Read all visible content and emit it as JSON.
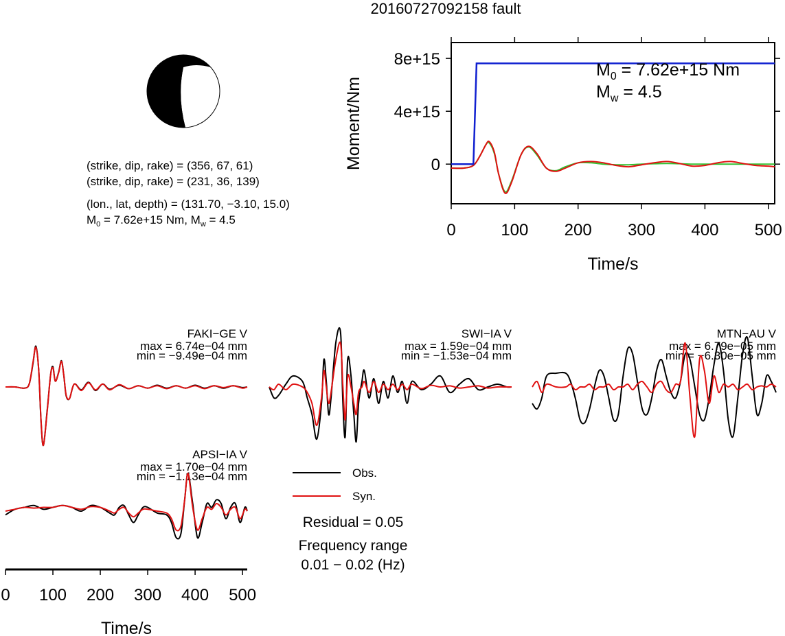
{
  "title": "20160727092158 fault",
  "mechanism": {
    "plane1": "(strike, dip, rake) = (356, 67, 61)",
    "plane2": "(strike, dip, rake) = (231, 36, 139)",
    "location": "(lon., lat, depth) = (131.70, −3.10, 15.0)",
    "m0_label": "M",
    "m0_sub": "0",
    "m0_rest": " = 7.62e+15 Nm, M",
    "mw_sub": "w",
    "mw_rest": " = 4.5"
  },
  "moment_panel": {
    "m0_label": "M",
    "m0_sub": "0",
    "m0_value": " = 7.62e+15 Nm",
    "mw_label": "M",
    "mw_sub": "w",
    "mw_value": " = 4.5"
  },
  "legend": {
    "obs": "Obs.",
    "syn": "Syn.",
    "residual": "Residual = 0.05",
    "freq_title": "Frequency range",
    "freq_value": "0.01 − 0.02 (Hz)"
  },
  "colors": {
    "observed": "#000000",
    "synthetic": "#e01010",
    "moment": "#1020d0",
    "moment_rate": "#30c030"
  },
  "chart_data": [
    {
      "type": "line",
      "title": "",
      "xlabel": "Time/s",
      "ylabel": "Moment/Nm",
      "xlim": [
        0,
        510
      ],
      "ylim": [
        -3000000000000000.0,
        9200000000000000.0
      ],
      "xticks": [
        "0",
        "100",
        "200",
        "300",
        "400",
        "500"
      ],
      "xtick_values": [
        0,
        100,
        200,
        300,
        400,
        500
      ],
      "yticks": [
        "0",
        "4e+15",
        "8e+15"
      ],
      "ytick_values": [
        0,
        4000000000000000.0,
        8000000000000000.0
      ],
      "grid": false,
      "series": [
        {
          "key": "moment",
          "x": [
            0,
            35,
            40,
            510
          ],
          "y": [
            0,
            0,
            7620000000000000.0,
            7620000000000000.0
          ]
        },
        {
          "key": "rate_green",
          "x": [
            0,
            20,
            35,
            45,
            55,
            60,
            68,
            75,
            85,
            95,
            110,
            122,
            135,
            150,
            165,
            180,
            200,
            220,
            240,
            260,
            280,
            300,
            320,
            340,
            360,
            380,
            400,
            420,
            440,
            460,
            480,
            500,
            510
          ],
          "y": [
            -300000000000000.0,
            -300000000000000.0,
            -100000000000000.0,
            600000000000000.0,
            1500000000000000.0,
            1600000000000000.0,
            800000000000000.0,
            -800000000000000.0,
            -2100000000000000.0,
            -1300000000000000.0,
            700000000000000.0,
            1300000000000000.0,
            700000000000000.0,
            -300000000000000.0,
            -500000000000000.0,
            -200000000000000.0,
            100000000000000.0,
            100000000000000.0,
            0.0,
            -50000000000000.0,
            -50000000000000.0,
            0.0,
            30000000000000.0,
            50000000000000.0,
            30000000000000.0,
            0.0,
            0.0,
            0.0,
            0.0,
            0.0,
            0.0,
            0.0,
            0.0
          ]
        },
        {
          "key": "rate_red",
          "x": [
            0,
            20,
            35,
            45,
            55,
            60,
            68,
            75,
            85,
            95,
            110,
            122,
            135,
            150,
            165,
            180,
            200,
            220,
            240,
            260,
            280,
            300,
            320,
            340,
            360,
            380,
            400,
            420,
            440,
            460,
            480,
            500,
            510
          ],
          "y": [
            -300000000000000.0,
            -300000000000000.0,
            -100000000000000.0,
            600000000000000.0,
            1500000000000000.0,
            1700000000000000.0,
            900000000000000.0,
            -800000000000000.0,
            -2200000000000000.0,
            -1400000000000000.0,
            700000000000000.0,
            1350000000000000.0,
            800000000000000.0,
            -300000000000000.0,
            -550000000000000.0,
            -300000000000000.0,
            100000000000000.0,
            200000000000000.0,
            100000000000000.0,
            -100000000000000.0,
            -200000000000000.0,
            -50000000000000.0,
            100000000000000.0,
            200000000000000.0,
            50000000000000.0,
            -150000000000000.0,
            -100000000000000.0,
            100000000000000.0,
            200000000000000.0,
            50000000000000.0,
            -100000000000000.0,
            -150000000000000.0,
            -200000000000000.0
          ]
        }
      ]
    },
    {
      "type": "line",
      "title": "FAKI−GE V",
      "max_label": "max = 6.74e−04 mm",
      "min_label": "min = −9.49e−04 mm",
      "xlim": [
        0,
        510
      ],
      "ylim": [
        -1,
        1
      ],
      "series": [
        {
          "name": "Obs.",
          "x": [
            0,
            20,
            40,
            50,
            58,
            64,
            70,
            75,
            80,
            88,
            95,
            100,
            105,
            112,
            118,
            123,
            128,
            135,
            145,
            160,
            175,
            190,
            205,
            220,
            240,
            260,
            280,
            300,
            320,
            340,
            360,
            380,
            400,
            420,
            440,
            460,
            480,
            500,
            510
          ],
          "y": [
            0,
            0,
            -0.02,
            0.05,
            0.4,
            0.7,
            0.3,
            -0.6,
            -1.0,
            -0.4,
            0.2,
            0.35,
            0.1,
            0.25,
            0.45,
            0.2,
            -0.15,
            -0.2,
            0.05,
            -0.05,
            0.08,
            -0.06,
            0.05,
            -0.04,
            0.03,
            -0.03,
            0.02,
            -0.02,
            0.03,
            -0.02,
            0.02,
            -0.02,
            0.03,
            -0.02,
            0.02,
            -0.02,
            0.02,
            -0.01,
            0
          ]
        },
        {
          "name": "Syn.",
          "x": [
            0,
            20,
            40,
            50,
            58,
            64,
            70,
            75,
            80,
            88,
            95,
            100,
            105,
            112,
            118,
            123,
            128,
            135,
            145,
            160,
            175,
            190,
            205,
            220,
            240,
            260,
            280,
            300,
            320,
            340,
            360,
            380,
            400,
            420,
            440,
            460,
            480,
            500,
            510
          ],
          "y": [
            0,
            0,
            -0.02,
            0.05,
            0.42,
            0.68,
            0.3,
            -0.58,
            -1.0,
            -0.42,
            0.2,
            0.33,
            0.1,
            0.24,
            0.44,
            0.2,
            -0.14,
            -0.2,
            0.05,
            -0.06,
            0.07,
            -0.05,
            0.05,
            -0.05,
            0.04,
            -0.03,
            0.02,
            -0.02,
            0.02,
            -0.03,
            0.02,
            -0.02,
            0.02,
            -0.03,
            0.02,
            -0.01,
            0.02,
            -0.02,
            0
          ]
        }
      ]
    },
    {
      "type": "line",
      "title": "SWI−IA V",
      "max_label": "max = 1.59e−04 mm",
      "min_label": "min = −1.53e−04 mm",
      "xlim": [
        0,
        510
      ],
      "ylim": [
        -1,
        1
      ],
      "series": [
        {
          "name": "Obs.",
          "x": [
            0,
            10,
            20,
            35,
            50,
            70,
            80,
            90,
            100,
            110,
            115,
            120,
            125,
            130,
            140,
            150,
            155,
            160,
            165,
            172,
            178,
            183,
            188,
            195,
            200,
            210,
            220,
            230,
            240,
            250,
            260,
            270,
            280,
            290,
            300,
            320,
            340,
            360,
            380,
            400,
            420,
            440,
            460,
            480,
            500,
            510
          ],
          "y": [
            0,
            -0.2,
            -0.15,
            0.05,
            0.2,
            0.1,
            -0.2,
            -0.5,
            -0.95,
            -0.3,
            0.5,
            0.1,
            -0.5,
            -0.2,
            0.8,
            1.0,
            -0.3,
            -0.9,
            0.5,
            0.2,
            -0.5,
            -1.0,
            -0.3,
            0.1,
            0.3,
            -0.2,
            0.15,
            -0.3,
            0.1,
            -0.2,
            0.2,
            -0.1,
            0.1,
            -0.3,
            0.1,
            -0.05,
            0.05,
            0.2,
            -0.1,
            0.05,
            0.15,
            -0.05,
            0.0,
            0.05,
            0.0,
            0
          ]
        },
        {
          "name": "Syn.",
          "x": [
            0,
            10,
            20,
            35,
            50,
            70,
            80,
            90,
            100,
            110,
            115,
            120,
            125,
            130,
            140,
            150,
            155,
            160,
            165,
            172,
            178,
            183,
            188,
            195,
            200,
            210,
            220,
            230,
            240,
            250,
            260,
            270,
            280,
            290,
            300,
            320,
            340,
            360,
            380,
            400,
            420,
            440,
            460,
            480,
            500,
            510
          ],
          "y": [
            0,
            -0.05,
            0.05,
            -0.05,
            0.05,
            0.0,
            -0.1,
            -0.3,
            -0.7,
            -0.2,
            0.3,
            0.0,
            -0.3,
            -0.1,
            0.5,
            0.8,
            0.0,
            -0.6,
            0.2,
            0.0,
            -0.3,
            -0.5,
            -0.1,
            0.0,
            0.1,
            -0.1,
            0.1,
            -0.1,
            0.05,
            -0.05,
            0.05,
            -0.05,
            0.05,
            -0.05,
            0.05,
            -0.03,
            0.03,
            0.0,
            0.02,
            -0.02,
            0.0,
            0.02,
            -0.02,
            0.0,
            0.0,
            0
          ]
        }
      ]
    },
    {
      "type": "line",
      "title": "MTN−AU V",
      "max_label": "max = 6.79e−05 mm",
      "min_label": "min = −6.30e−05 mm",
      "xlim": [
        0,
        510
      ],
      "ylim": [
        -1,
        1
      ],
      "series": [
        {
          "name": "Obs.",
          "x": [
            0,
            10,
            20,
            30,
            50,
            70,
            80,
            90,
            100,
            110,
            120,
            130,
            140,
            150,
            160,
            170,
            180,
            190,
            200,
            210,
            220,
            230,
            240,
            250,
            260,
            270,
            280,
            290,
            300,
            310,
            320,
            330,
            340,
            350,
            360,
            370,
            380,
            390,
            400,
            410,
            420,
            430,
            440,
            450,
            460,
            470,
            480,
            490,
            500,
            510
          ],
          "y": [
            -0.3,
            -0.4,
            -0.2,
            0.2,
            0.25,
            0.25,
            0.1,
            -0.2,
            -0.6,
            -0.65,
            -0.4,
            0.0,
            0.3,
            0.2,
            -0.2,
            -0.6,
            -0.5,
            0.2,
            0.7,
            0.6,
            0.1,
            -0.4,
            -0.5,
            -0.2,
            0.3,
            0.5,
            0.2,
            -0.1,
            -0.2,
            0.1,
            0.6,
            0.5,
            0.0,
            -0.5,
            -0.6,
            -0.2,
            0.4,
            0.8,
            0.3,
            -0.6,
            -0.9,
            -0.2,
            0.6,
            0.9,
            0.2,
            -0.5,
            -0.3,
            0.2,
            0.1,
            -0.1
          ]
        },
        {
          "name": "Syn.",
          "x": [
            0,
            10,
            20,
            30,
            50,
            70,
            80,
            90,
            100,
            110,
            120,
            130,
            140,
            150,
            160,
            170,
            180,
            190,
            200,
            210,
            220,
            230,
            240,
            250,
            260,
            270,
            280,
            290,
            300,
            310,
            320,
            330,
            340,
            350,
            360,
            370,
            380,
            390,
            400,
            410,
            420,
            430,
            440,
            450,
            460,
            470,
            480,
            490,
            500,
            510
          ],
          "y": [
            0,
            0.1,
            -0.1,
            0.05,
            0.0,
            0.0,
            0.05,
            -0.05,
            0.0,
            0.0,
            0.05,
            -0.05,
            0.0,
            0.0,
            0.05,
            -0.05,
            0.0,
            0.0,
            0.05,
            -0.05,
            0.05,
            0.1,
            0.0,
            -0.1,
            0.05,
            0.1,
            -0.05,
            -0.1,
            0.05,
            0.1,
            0.8,
            -0.2,
            -0.9,
            0.5,
            0.3,
            -0.3,
            0.2,
            -0.1,
            0.05,
            0.0,
            0.05,
            -0.05,
            0.0,
            0.05,
            -0.05,
            0.0,
            0.02,
            0.0,
            0.05,
            0.0
          ]
        }
      ]
    },
    {
      "type": "line",
      "title": "APSI−IA V",
      "max_label": "max = 1.70e−04 mm",
      "min_label": "min = −1.13e−04 mm",
      "xlim": [
        0,
        510
      ],
      "ylim": [
        -1,
        1
      ],
      "xlabel": "Time/s",
      "xticks": [
        "0",
        "100",
        "200",
        "300",
        "400",
        "500"
      ],
      "xtick_values": [
        0,
        100,
        200,
        300,
        400,
        500
      ],
      "series": [
        {
          "name": "Obs.",
          "x": [
            0,
            20,
            40,
            60,
            80,
            100,
            120,
            140,
            160,
            180,
            200,
            220,
            230,
            240,
            250,
            260,
            270,
            280,
            290,
            300,
            320,
            340,
            350,
            360,
            370,
            378,
            385,
            395,
            405,
            415,
            425,
            435,
            445,
            455,
            465,
            475,
            485,
            495,
            505,
            510
          ],
          "y": [
            -0.1,
            0.05,
            0.1,
            0.15,
            0.05,
            0.1,
            0.15,
            0.1,
            0.0,
            0.15,
            0.1,
            -0.05,
            -0.1,
            0.1,
            0.15,
            -0.1,
            -0.3,
            -0.1,
            0.1,
            0.1,
            -0.05,
            -0.1,
            -0.3,
            -0.7,
            -0.6,
            0.3,
            1.0,
            0.2,
            -0.7,
            -0.3,
            0.2,
            0.1,
            0.3,
            0.2,
            -0.2,
            0.1,
            0.2,
            -0.3,
            0.1,
            0
          ]
        },
        {
          "name": "Syn.",
          "x": [
            0,
            20,
            40,
            60,
            80,
            100,
            120,
            140,
            160,
            180,
            200,
            220,
            230,
            240,
            250,
            260,
            270,
            280,
            290,
            300,
            320,
            340,
            350,
            360,
            370,
            378,
            385,
            395,
            405,
            415,
            425,
            435,
            445,
            455,
            465,
            475,
            485,
            495,
            505,
            510
          ],
          "y": [
            0.0,
            0.05,
            0.1,
            0.08,
            0.1,
            0.1,
            0.15,
            0.1,
            0.05,
            0.12,
            0.1,
            0.0,
            -0.05,
            0.05,
            0.1,
            -0.05,
            -0.15,
            -0.05,
            0.05,
            0.05,
            0.0,
            -0.05,
            -0.2,
            -0.5,
            -0.4,
            0.3,
            1.0,
            0.1,
            -0.5,
            -0.2,
            0.1,
            0.05,
            0.2,
            0.1,
            -0.1,
            0.05,
            0.1,
            -0.2,
            0.05,
            0
          ]
        }
      ]
    }
  ]
}
